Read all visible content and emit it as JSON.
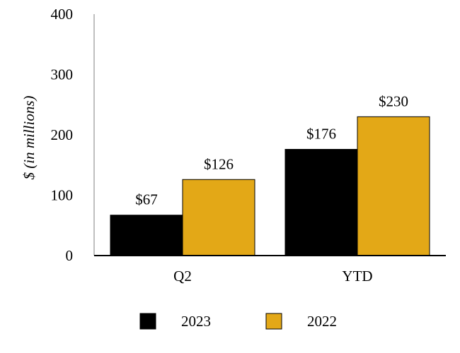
{
  "chart_data": {
    "type": "bar",
    "title": "",
    "xlabel": "",
    "ylabel": "$ (in millions)",
    "categories": [
      "Q2",
      "YTD"
    ],
    "ylim": [
      0,
      400
    ],
    "yticks": [
      0,
      100,
      200,
      300,
      400
    ],
    "series": [
      {
        "name": "2023",
        "color": "#000000",
        "values": [
          67,
          176
        ],
        "labels": [
          "$67",
          "$176"
        ]
      },
      {
        "name": "2022",
        "color": "#E3A817",
        "values": [
          126,
          230
        ],
        "labels": [
          "$126",
          "$230"
        ]
      }
    ],
    "legend_position": "bottom-center"
  }
}
